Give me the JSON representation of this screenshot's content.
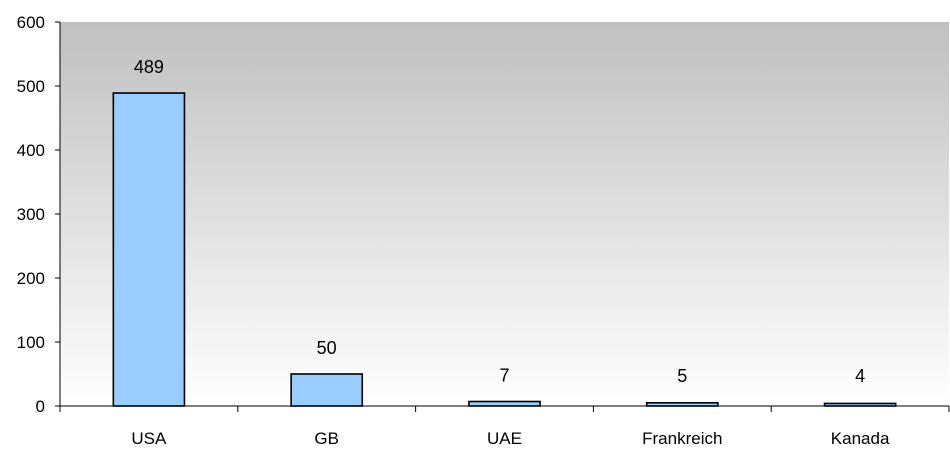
{
  "chart_data": {
    "type": "bar",
    "categories": [
      "USA",
      "GB",
      "UAE",
      "Frankreich",
      "Kanada"
    ],
    "values": [
      489,
      50,
      7,
      5,
      4
    ],
    "title": "",
    "xlabel": "",
    "ylabel": "",
    "ylim": [
      0,
      600
    ],
    "yticks": [
      0,
      100,
      200,
      300,
      400,
      500,
      600
    ],
    "grid": false,
    "legend": "none",
    "data_labels": true,
    "colors": {
      "bar_fill": "#99ccff",
      "bar_stroke": "#000000",
      "plot_bg_top": "#c0c0c0",
      "plot_bg_bottom": "#ffffff",
      "axis": "#000000"
    }
  }
}
